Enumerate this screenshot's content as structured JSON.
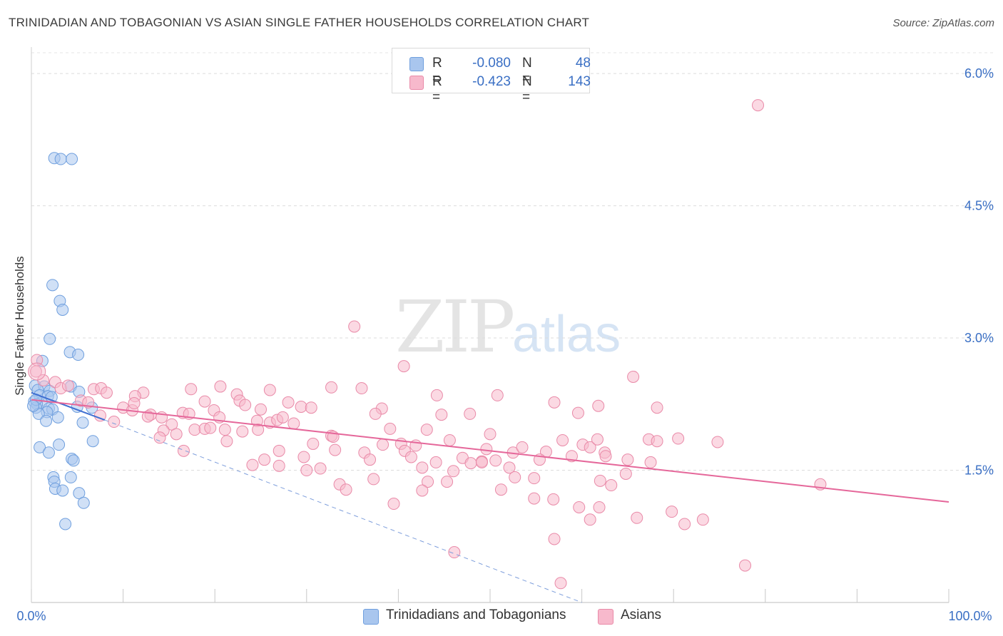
{
  "header": {
    "title": "TRINIDADIAN AND TOBAGONIAN VS ASIAN SINGLE FATHER HOUSEHOLDS CORRELATION CHART",
    "source": "Source: ZipAtlas.com"
  },
  "watermark": {
    "zip": "ZIP",
    "atlas": "atlas"
  },
  "legend": {
    "r_label": "R =",
    "n_label": "N =",
    "rows": [
      {
        "name": "Trinidadians and Tobagonians",
        "r": "-0.080",
        "n": "48",
        "color": "#a9c6ee",
        "border": "#6f9fde"
      },
      {
        "name": "Asians",
        "r": "-0.423",
        "n": "143",
        "color": "#f7b9cc",
        "border": "#e98aa8"
      }
    ]
  },
  "chart_data": {
    "type": "scatter",
    "title": "TRINIDADIAN AND TOBAGONIAN VS ASIAN SINGLE FATHER HOUSEHOLDS CORRELATION CHART",
    "xlabel": "",
    "ylabel": "Single Father Households",
    "xlim": [
      0,
      100
    ],
    "ylim": [
      0,
      6.3
    ],
    "x_tick_labels": [
      "0.0%",
      "100.0%"
    ],
    "y_ticks": [
      1.5,
      3.0,
      4.5,
      6.0
    ],
    "y_tick_labels": [
      "1.5%",
      "3.0%",
      "4.5%",
      "6.0%"
    ],
    "grid": true,
    "series": [
      {
        "name": "Trinidadians and Tobagonians",
        "color": "#6f9fde",
        "fill": "#a9c6ee",
        "points": [
          [
            2.5,
            5.04
          ],
          [
            3.2,
            5.03
          ],
          [
            4.4,
            5.03
          ],
          [
            2.3,
            3.6
          ],
          [
            3.1,
            3.42
          ],
          [
            3.4,
            3.32
          ],
          [
            2.0,
            2.99
          ],
          [
            4.2,
            2.84
          ],
          [
            5.1,
            2.81
          ],
          [
            1.2,
            2.74
          ],
          [
            0.4,
            2.46
          ],
          [
            1.4,
            2.45
          ],
          [
            4.3,
            2.45
          ],
          [
            0.7,
            2.41
          ],
          [
            2.0,
            2.4
          ],
          [
            5.2,
            2.39
          ],
          [
            0.9,
            2.35
          ],
          [
            1.8,
            2.34
          ],
          [
            2.2,
            2.33
          ],
          [
            0.3,
            2.28
          ],
          [
            1.1,
            2.27
          ],
          [
            0.6,
            2.25
          ],
          [
            0.5,
            2.21
          ],
          [
            1.9,
            2.2
          ],
          [
            2.3,
            2.19
          ],
          [
            6.6,
            2.21
          ],
          [
            5.0,
            2.22
          ],
          [
            1.7,
            2.16
          ],
          [
            0.8,
            2.14
          ],
          [
            2.9,
            2.1
          ],
          [
            1.6,
            2.06
          ],
          [
            5.6,
            2.04
          ],
          [
            6.7,
            1.83
          ],
          [
            3.0,
            1.79
          ],
          [
            0.9,
            1.76
          ],
          [
            1.9,
            1.7
          ],
          [
            4.4,
            1.63
          ],
          [
            4.6,
            1.61
          ],
          [
            2.4,
            1.42
          ],
          [
            4.3,
            1.42
          ],
          [
            2.5,
            1.37
          ],
          [
            2.6,
            1.29
          ],
          [
            3.4,
            1.27
          ],
          [
            5.2,
            1.24
          ],
          [
            5.7,
            1.13
          ],
          [
            3.7,
            0.89
          ],
          [
            0.5,
            2.3
          ],
          [
            0.2,
            2.23
          ]
        ]
      },
      {
        "name": "Asians",
        "color": "#e98aa8",
        "fill": "#f7b9cc",
        "points": [
          [
            79.2,
            5.64
          ],
          [
            35.2,
            3.13
          ],
          [
            40.6,
            2.68
          ],
          [
            0.6,
            2.75
          ],
          [
            65.6,
            2.56
          ],
          [
            0.5,
            2.62
          ],
          [
            1.3,
            2.52
          ],
          [
            2.6,
            2.5
          ],
          [
            3.2,
            2.43
          ],
          [
            6.8,
            2.42
          ],
          [
            7.6,
            2.43
          ],
          [
            4.0,
            2.46
          ],
          [
            8.2,
            2.38
          ],
          [
            12.2,
            2.38
          ],
          [
            11.3,
            2.34
          ],
          [
            17.4,
            2.42
          ],
          [
            20.6,
            2.45
          ],
          [
            22.4,
            2.36
          ],
          [
            26.0,
            2.41
          ],
          [
            32.7,
            2.44
          ],
          [
            36.0,
            2.43
          ],
          [
            44.2,
            2.35
          ],
          [
            50.8,
            2.35
          ],
          [
            5.4,
            2.29
          ],
          [
            6.2,
            2.27
          ],
          [
            10.0,
            2.21
          ],
          [
            18.9,
            2.28
          ],
          [
            22.7,
            2.29
          ],
          [
            28.0,
            2.27
          ],
          [
            11.0,
            2.18
          ],
          [
            13.0,
            2.13
          ],
          [
            14.2,
            2.1
          ],
          [
            16.5,
            2.15
          ],
          [
            19.9,
            2.18
          ],
          [
            23.3,
            2.24
          ],
          [
            25.0,
            2.19
          ],
          [
            29.4,
            2.22
          ],
          [
            30.5,
            2.21
          ],
          [
            38.2,
            2.2
          ],
          [
            44.7,
            2.13
          ],
          [
            47.8,
            2.14
          ],
          [
            57.0,
            2.27
          ],
          [
            59.6,
            2.15
          ],
          [
            61.8,
            2.23
          ],
          [
            68.2,
            2.21
          ],
          [
            7.5,
            2.12
          ],
          [
            9.0,
            2.05
          ],
          [
            12.7,
            2.11
          ],
          [
            15.3,
            2.02
          ],
          [
            17.2,
            2.14
          ],
          [
            20.5,
            2.1
          ],
          [
            24.6,
            2.06
          ],
          [
            26.0,
            2.04
          ],
          [
            26.8,
            2.07
          ],
          [
            27.4,
            2.1
          ],
          [
            28.6,
            2.03
          ],
          [
            39.1,
            1.97
          ],
          [
            43.1,
            1.96
          ],
          [
            50.0,
            1.91
          ],
          [
            14.4,
            1.95
          ],
          [
            15.8,
            1.91
          ],
          [
            17.8,
            1.96
          ],
          [
            18.9,
            1.97
          ],
          [
            19.5,
            1.98
          ],
          [
            21.1,
            1.96
          ],
          [
            23.0,
            1.94
          ],
          [
            24.7,
            1.96
          ],
          [
            32.7,
            1.89
          ],
          [
            38.3,
            1.79
          ],
          [
            40.3,
            1.8
          ],
          [
            40.7,
            1.72
          ],
          [
            41.9,
            1.78
          ],
          [
            45.6,
            1.84
          ],
          [
            49.6,
            1.74
          ],
          [
            52.5,
            1.7
          ],
          [
            53.5,
            1.76
          ],
          [
            56.1,
            1.71
          ],
          [
            57.9,
            1.84
          ],
          [
            60.1,
            1.79
          ],
          [
            60.9,
            1.76
          ],
          [
            62.5,
            1.7
          ],
          [
            67.3,
            1.85
          ],
          [
            68.2,
            1.83
          ],
          [
            70.5,
            1.86
          ],
          [
            74.8,
            1.82
          ],
          [
            14.0,
            1.87
          ],
          [
            16.6,
            1.72
          ],
          [
            21.3,
            1.83
          ],
          [
            27.0,
            1.72
          ],
          [
            30.7,
            1.8
          ],
          [
            33.1,
            1.73
          ],
          [
            36.3,
            1.7
          ],
          [
            41.4,
            1.65
          ],
          [
            44.1,
            1.59
          ],
          [
            47.0,
            1.64
          ],
          [
            47.9,
            1.58
          ],
          [
            49.1,
            1.6
          ],
          [
            50.6,
            1.61
          ],
          [
            55.4,
            1.62
          ],
          [
            58.9,
            1.66
          ],
          [
            62.6,
            1.66
          ],
          [
            65.0,
            1.62
          ],
          [
            67.5,
            1.59
          ],
          [
            24.1,
            1.56
          ],
          [
            25.4,
            1.62
          ],
          [
            29.7,
            1.65
          ],
          [
            31.5,
            1.52
          ],
          [
            36.9,
            1.62
          ],
          [
            42.6,
            1.53
          ],
          [
            46.0,
            1.49
          ],
          [
            49.1,
            1.59
          ],
          [
            52.1,
            1.53
          ],
          [
            33.6,
            1.34
          ],
          [
            34.3,
            1.28
          ],
          [
            37.3,
            1.4
          ],
          [
            43.2,
            1.37
          ],
          [
            45.3,
            1.37
          ],
          [
            52.7,
            1.42
          ],
          [
            54.8,
            1.41
          ],
          [
            62.0,
            1.38
          ],
          [
            63.2,
            1.33
          ],
          [
            86.0,
            1.34
          ],
          [
            51.2,
            1.28
          ],
          [
            54.8,
            1.18
          ],
          [
            56.9,
            1.17
          ],
          [
            39.5,
            1.12
          ],
          [
            59.7,
            1.08
          ],
          [
            61.9,
            1.08
          ],
          [
            60.9,
            0.94
          ],
          [
            66.0,
            0.96
          ],
          [
            69.8,
            1.03
          ],
          [
            71.2,
            0.89
          ],
          [
            73.2,
            0.94
          ],
          [
            57.0,
            0.72
          ],
          [
            46.1,
            0.57
          ],
          [
            77.8,
            0.42
          ],
          [
            57.7,
            0.22
          ],
          [
            42.6,
            1.27
          ],
          [
            64.8,
            1.46
          ],
          [
            32.9,
            1.88
          ],
          [
            37.5,
            2.14
          ],
          [
            27.0,
            1.55
          ],
          [
            30.0,
            1.5
          ],
          [
            61.7,
            1.85
          ],
          [
            11.2,
            2.26
          ]
        ]
      }
    ],
    "trend_lines": [
      {
        "series": "Trinidadians and Tobagonians",
        "style": "solid",
        "from": [
          0,
          2.38
        ],
        "to": [
          8,
          2.07
        ]
      },
      {
        "series": "Trinidadians and Tobagonians",
        "style": "dashed",
        "from": [
          8,
          2.07
        ],
        "to": [
          60,
          0
        ]
      },
      {
        "series": "Asians",
        "style": "solid",
        "from": [
          0,
          2.3
        ],
        "to": [
          100,
          1.14
        ]
      }
    ]
  }
}
